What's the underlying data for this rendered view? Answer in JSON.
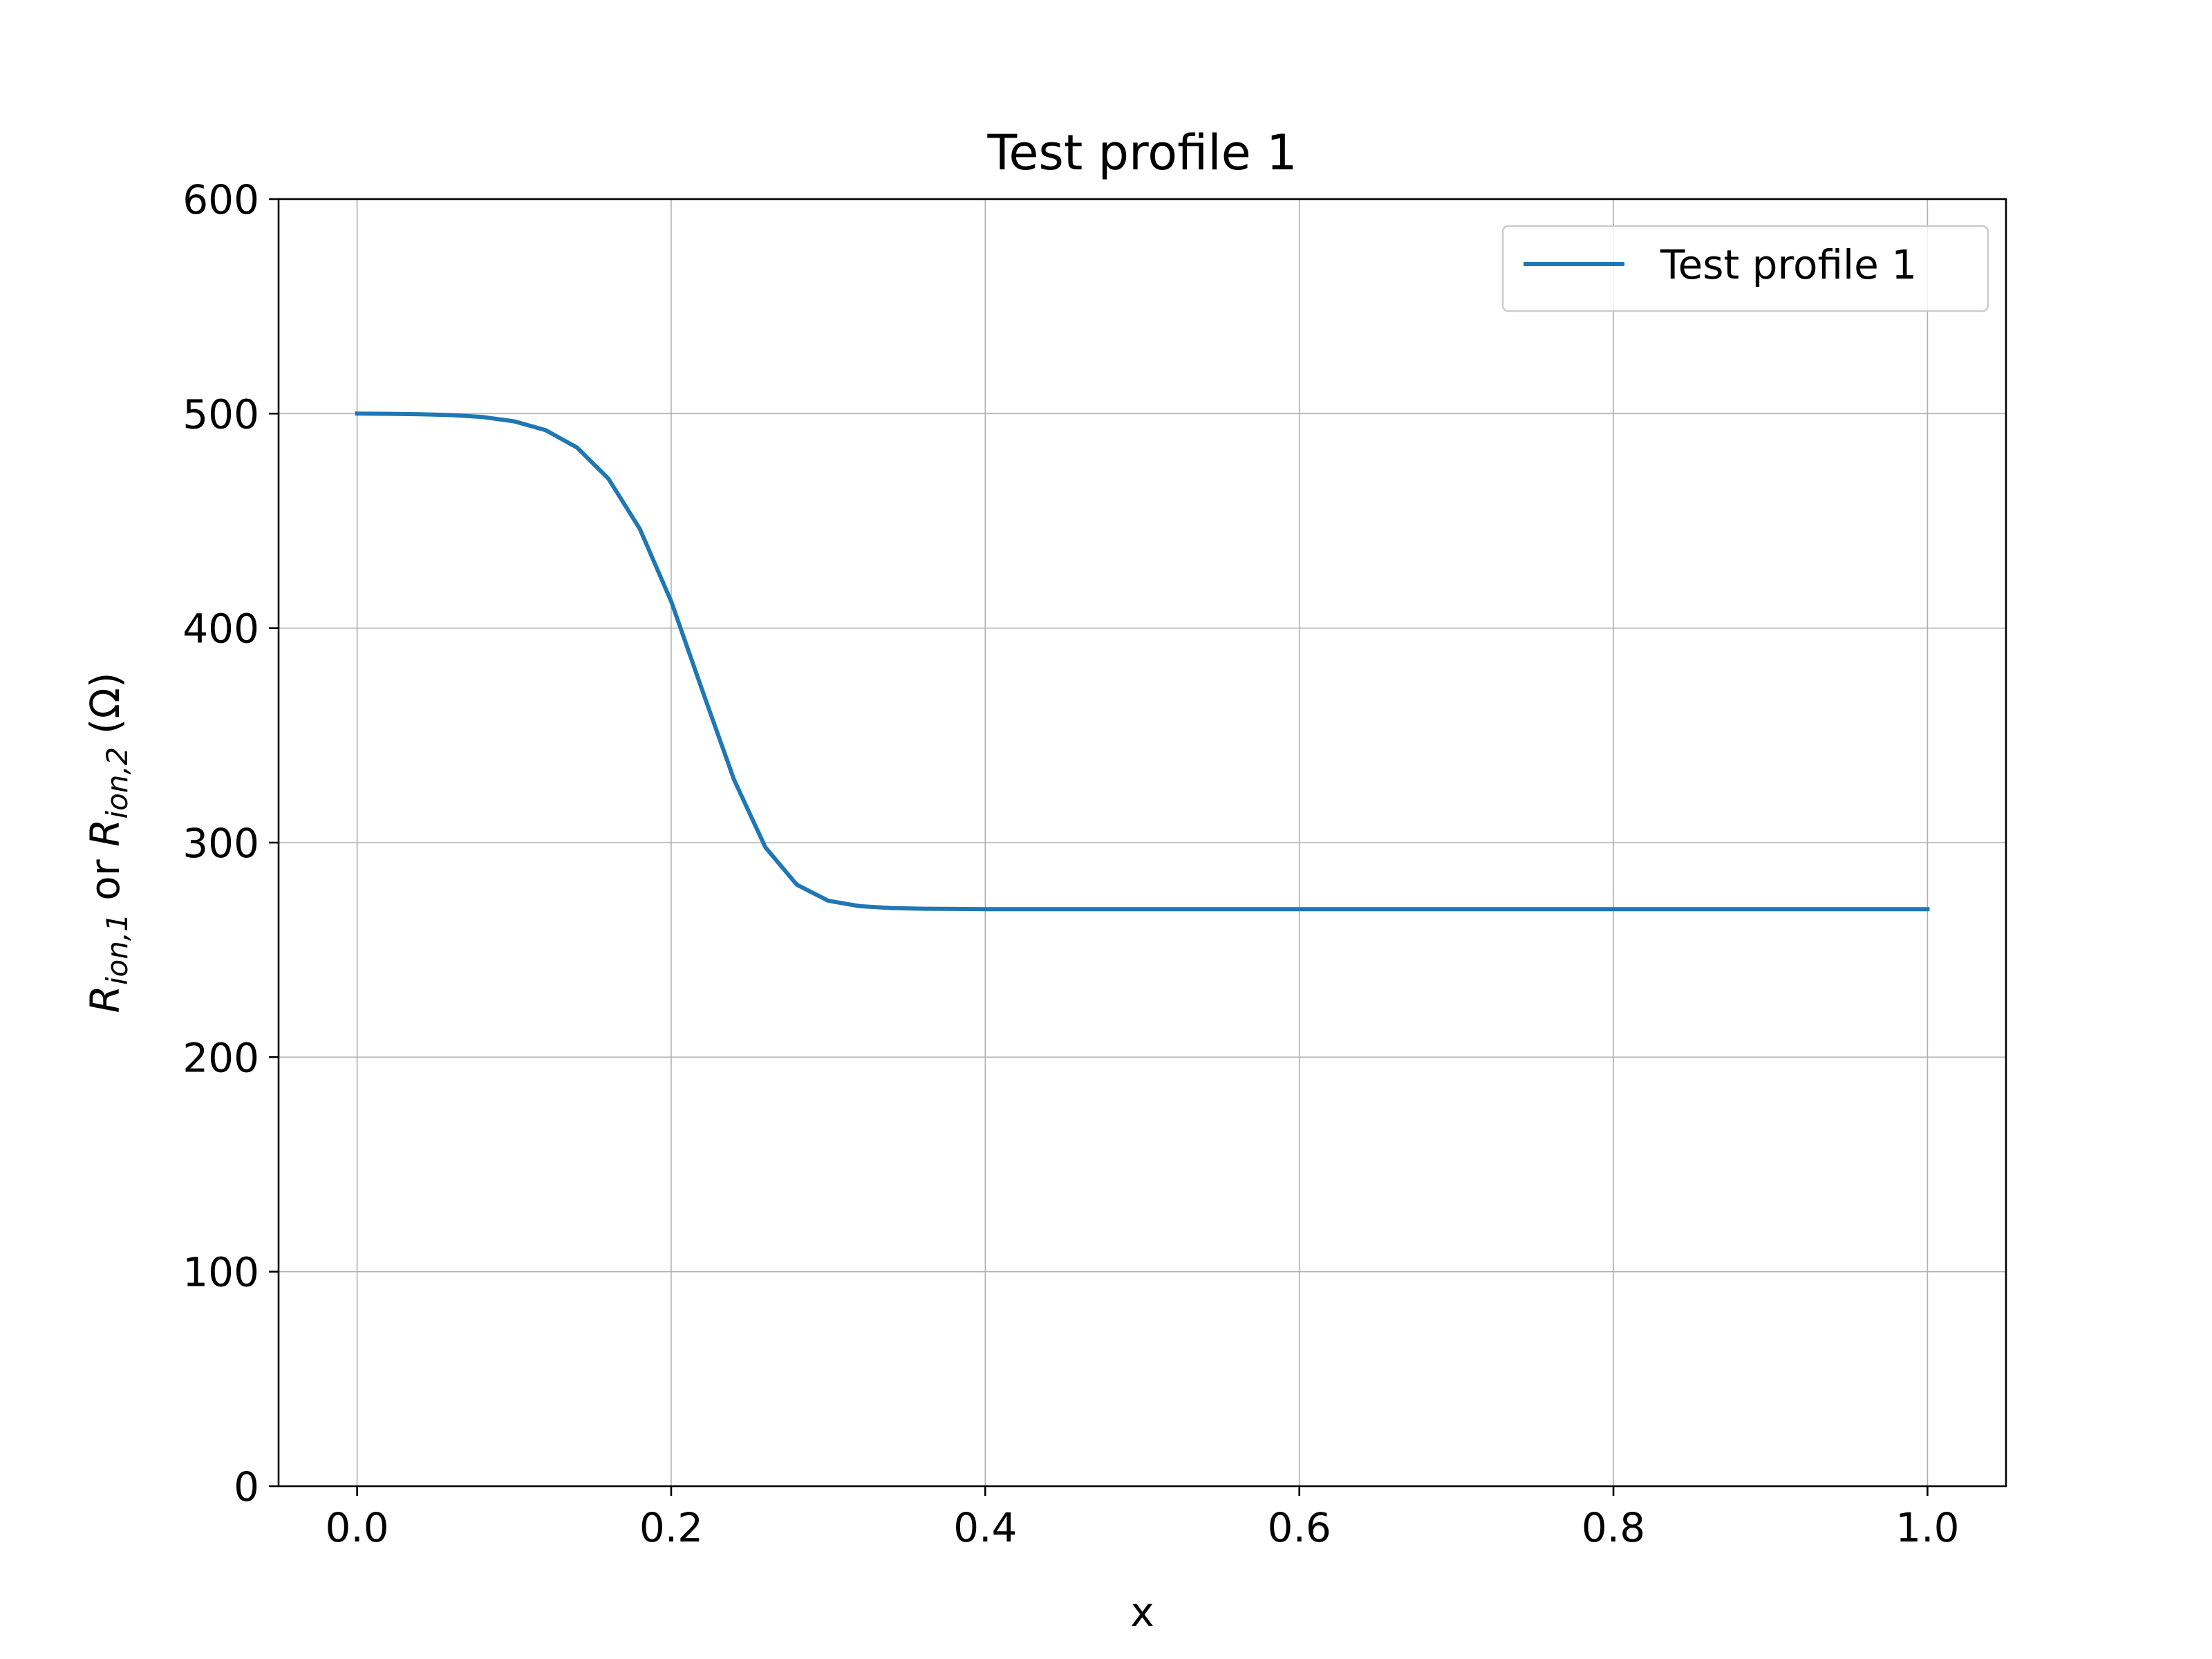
{
  "chart_data": {
    "type": "line",
    "title": "Test profile 1",
    "xlabel": "x",
    "ylabel": {
      "parts": [
        {
          "text": "R",
          "style": "italic"
        },
        {
          "text": "ion,1",
          "style": "italic-sub"
        },
        {
          "text": " or ",
          "style": "normal"
        },
        {
          "text": "R",
          "style": "italic"
        },
        {
          "text": "ion,2",
          "style": "italic-sub"
        },
        {
          "text": " (Ω)",
          "style": "normal"
        }
      ]
    },
    "xlim": [
      -0.05,
      1.05
    ],
    "ylim": [
      0,
      600
    ],
    "xticks": [
      0.0,
      0.2,
      0.4,
      0.6,
      0.8,
      1.0
    ],
    "xtick_labels": [
      "0.0",
      "0.2",
      "0.4",
      "0.6",
      "0.8",
      "1.0"
    ],
    "yticks": [
      0,
      100,
      200,
      300,
      400,
      500,
      600
    ],
    "ytick_labels": [
      "0",
      "100",
      "200",
      "300",
      "400",
      "500",
      "600"
    ],
    "grid": true,
    "legend": {
      "position": "upper right"
    },
    "series": [
      {
        "name": "Test profile 1",
        "color": "#1f77b4",
        "x": [
          0.0,
          0.02,
          0.04,
          0.06,
          0.08,
          0.1,
          0.12,
          0.14,
          0.16,
          0.18,
          0.2,
          0.22,
          0.24,
          0.26,
          0.28,
          0.3,
          0.32,
          0.34,
          0.36,
          0.38,
          0.4,
          0.42,
          0.44,
          0.46,
          0.48,
          0.5,
          0.55,
          0.6,
          0.7,
          0.8,
          0.9,
          1.0
        ],
        "y": [
          500.0,
          499.9,
          499.7,
          499.3,
          498.4,
          496.4,
          492.3,
          484.2,
          469.7,
          446.3,
          412.5,
          370.6,
          329.4,
          297.8,
          280.4,
          272.9,
          270.4,
          269.5,
          269.2,
          269.1,
          269.0,
          269.0,
          269.0,
          269.0,
          269.0,
          269.0,
          269.0,
          269.0,
          269.0,
          269.0,
          269.0,
          269.0
        ]
      }
    ]
  }
}
